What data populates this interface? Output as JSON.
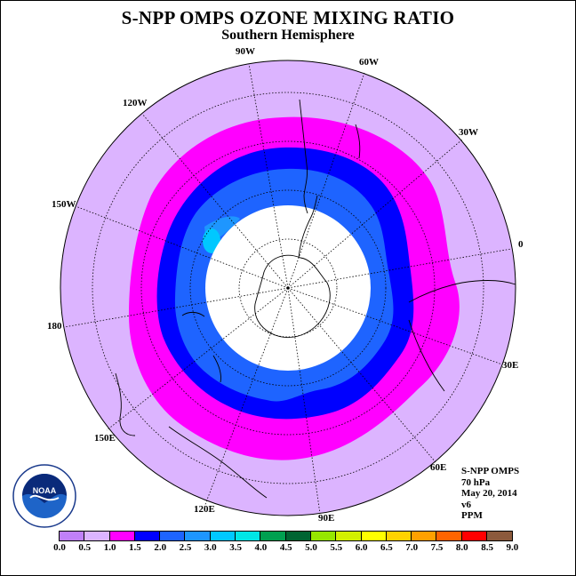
{
  "title": "S-NPP OMPS OZONE MIXING RATIO",
  "subtitle": "Southern Hemisphere",
  "longitude_labels": [
    "90W",
    "60W",
    "30W",
    "0",
    "30E",
    "60E",
    "90E",
    "120E",
    "150E",
    "180",
    "150W",
    "120W"
  ],
  "info": {
    "instrument": "S-NPP OMPS",
    "level": "70 hPa",
    "date": "May 20, 2014",
    "version": "v6",
    "units": "PPM"
  },
  "logo_text": "NOAA",
  "colorbar": {
    "ticks": [
      "0.0",
      "0.5",
      "1.0",
      "1.5",
      "2.0",
      "2.5",
      "3.0",
      "3.5",
      "4.0",
      "4.5",
      "5.0",
      "5.5",
      "6.0",
      "6.5",
      "7.0",
      "7.5",
      "8.0",
      "8.5",
      "9.0"
    ],
    "colors": [
      "#c080f8",
      "#dcb4ff",
      "#ff00ff",
      "#0000ff",
      "#1e64ff",
      "#1e96ff",
      "#00c8ff",
      "#00e6e6",
      "#00a050",
      "#006432",
      "#96e600",
      "#d2f000",
      "#ffff00",
      "#ffd200",
      "#ffa000",
      "#ff6400",
      "#ff0000",
      "#8c5a3c"
    ]
  },
  "colors": {
    "band_0_5": "#dcb4ff",
    "band_1_0": "#ff00ff",
    "band_1_5": "#0000ff",
    "band_2_0": "#1e64ff",
    "band_2_5": "#1e96ff",
    "band_3_0": "#00c8ff",
    "no_data": "#ffffff"
  }
}
